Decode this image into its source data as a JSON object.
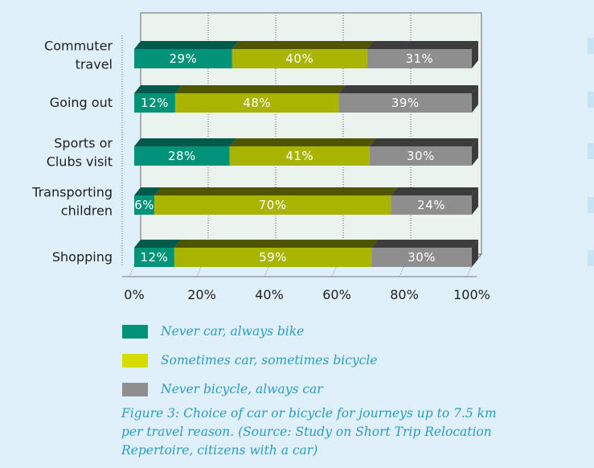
{
  "chart_data": {
    "type": "bar",
    "orientation": "horizontal",
    "stacked": true,
    "percent_stacked": true,
    "categories": [
      [
        "Commuter",
        "travel"
      ],
      [
        "Going out"
      ],
      [
        "Sports or",
        "Clubs visit"
      ],
      [
        "Transporting",
        "children"
      ],
      [
        "Shopping"
      ]
    ],
    "series": [
      {
        "name": "Never car, always bike",
        "color": "#00937a",
        "shade": "#005a4c",
        "values": [
          29,
          12,
          28,
          6,
          12
        ]
      },
      {
        "name": "Sometimes car, sometimes bicycle",
        "color": "#a9b400",
        "shade": "#4f5400",
        "values": [
          40,
          48,
          41,
          70,
          59
        ]
      },
      {
        "name": "Never bicycle, always car",
        "color": "#8e8e8e",
        "shade": "#3c3c3c",
        "values": [
          31,
          39,
          30,
          24,
          30
        ]
      }
    ],
    "xticks": [
      "0%",
      "20%",
      "40%",
      "60%",
      "80%",
      "100%"
    ],
    "xlim": [
      0,
      100
    ],
    "grid": true,
    "legend_position": "bottom"
  },
  "legend": {
    "items": [
      {
        "label": "Never car, always bike",
        "color": "#00937a"
      },
      {
        "label": "Sometimes car, sometimes bicycle",
        "color": "#d6db00"
      },
      {
        "label": "Never bicycle, always car",
        "color": "#8e8e8e"
      }
    ]
  },
  "caption": "Figure 3: Choice of car or bicycle for journeys up to 7.5 km per travel reason. (Source: Study on Short Trip Relocation Repertoire, citizens with a car)",
  "colors": {
    "page_background": "#dff0fb",
    "plot_background": "#ebf3ee",
    "text_accent": "#2a9bc4"
  }
}
